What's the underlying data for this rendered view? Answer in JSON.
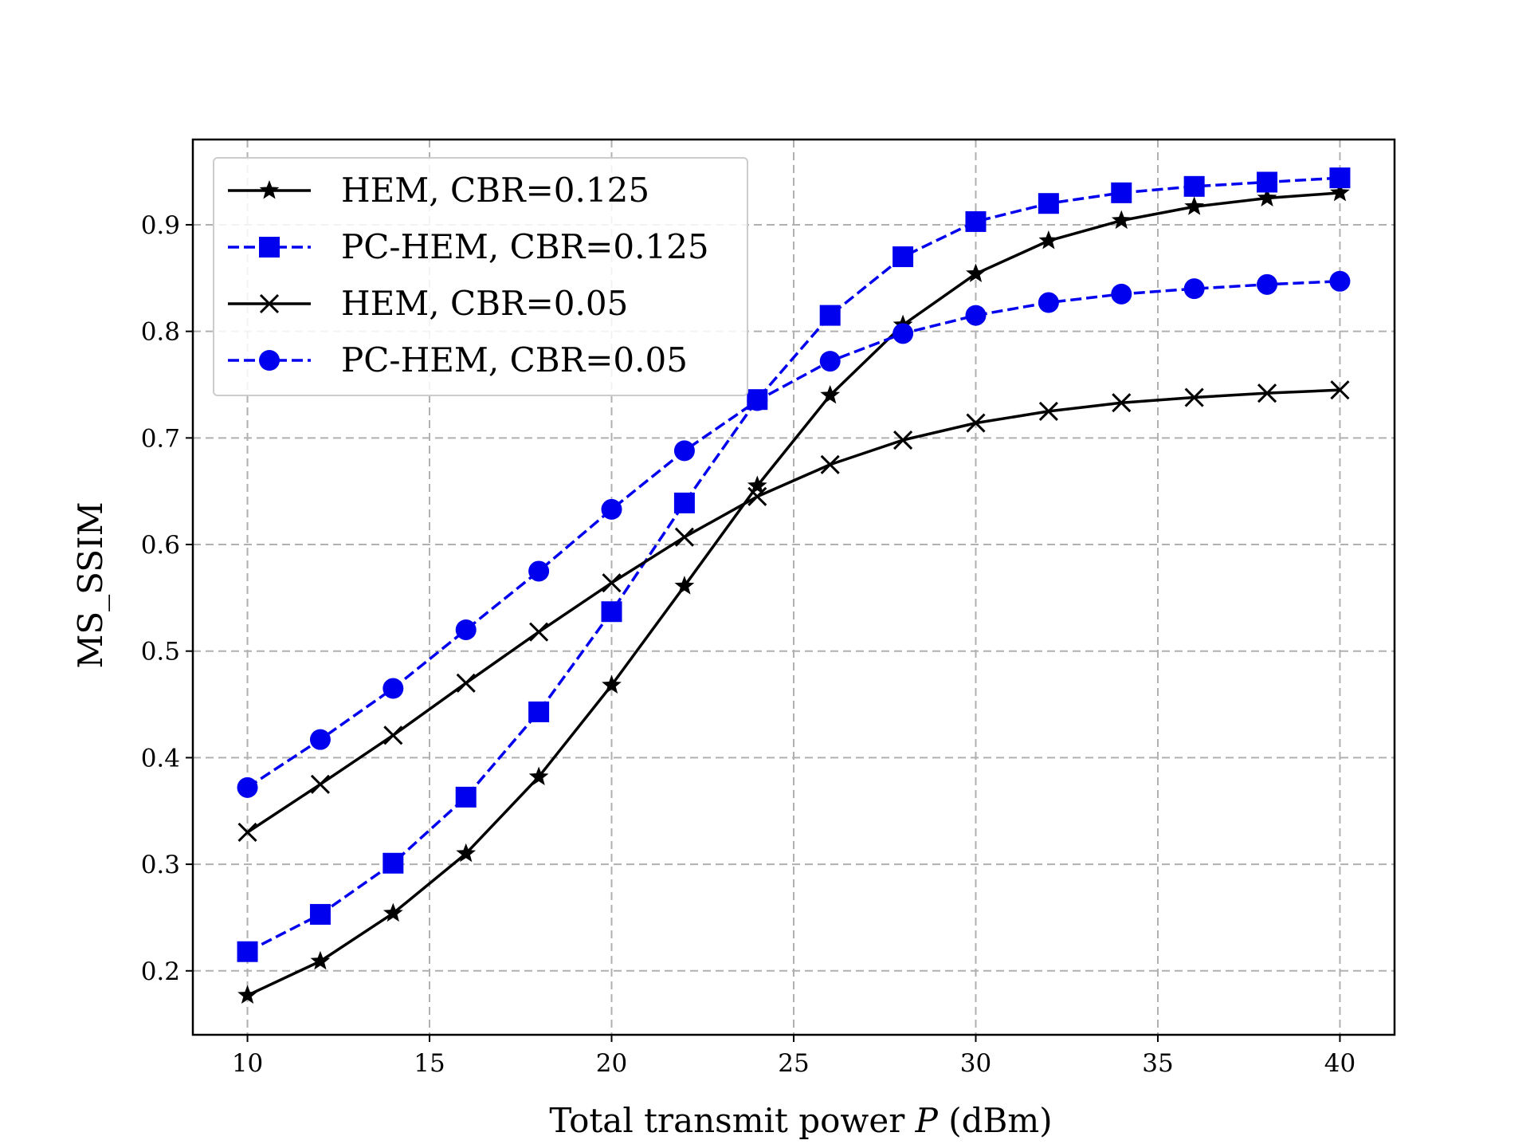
{
  "chart_data": {
    "type": "line",
    "title": "",
    "xlabel": "Total transmit power P (dBm)",
    "xlabel_parts": {
      "pre": "Total transmit power ",
      "var": "P",
      "post": " (dBm)"
    },
    "ylabel": "MS_SSIM",
    "xlim": [
      8.5,
      41.5
    ],
    "ylim": [
      0.14,
      0.98
    ],
    "xticks": [
      10,
      15,
      20,
      25,
      30,
      35,
      40
    ],
    "yticks": [
      0.2,
      0.3,
      0.4,
      0.5,
      0.6,
      0.7,
      0.8,
      0.9
    ],
    "grid": true,
    "legend_position": "top-left",
    "x": [
      10,
      12,
      14,
      16,
      18,
      20,
      22,
      24,
      26,
      28,
      30,
      32,
      34,
      36,
      38,
      40
    ],
    "series": [
      {
        "name": "HEM, CBR=0.125",
        "color": "#000000",
        "marker": "star",
        "linestyle": "solid",
        "values": [
          0.177,
          0.209,
          0.254,
          0.31,
          0.382,
          0.468,
          0.561,
          0.655,
          0.74,
          0.806,
          0.854,
          0.885,
          0.904,
          0.917,
          0.925,
          0.93
        ]
      },
      {
        "name": "PC-HEM, CBR=0.125",
        "color": "#0000ee",
        "marker": "square",
        "linestyle": "dashed",
        "values": [
          0.218,
          0.253,
          0.301,
          0.363,
          0.443,
          0.537,
          0.639,
          0.736,
          0.815,
          0.87,
          0.903,
          0.92,
          0.93,
          0.936,
          0.94,
          0.944
        ]
      },
      {
        "name": "HEM, CBR=0.05",
        "color": "#000000",
        "marker": "x",
        "linestyle": "solid",
        "values": [
          0.33,
          0.375,
          0.421,
          0.47,
          0.518,
          0.564,
          0.607,
          0.645,
          0.675,
          0.698,
          0.714,
          0.725,
          0.733,
          0.738,
          0.742,
          0.745
        ]
      },
      {
        "name": "PC-HEM, CBR=0.05",
        "color": "#0000ee",
        "marker": "circle",
        "linestyle": "dashed",
        "values": [
          0.372,
          0.417,
          0.465,
          0.52,
          0.575,
          0.633,
          0.688,
          0.735,
          0.772,
          0.798,
          0.815,
          0.827,
          0.835,
          0.84,
          0.844,
          0.847
        ]
      }
    ]
  }
}
